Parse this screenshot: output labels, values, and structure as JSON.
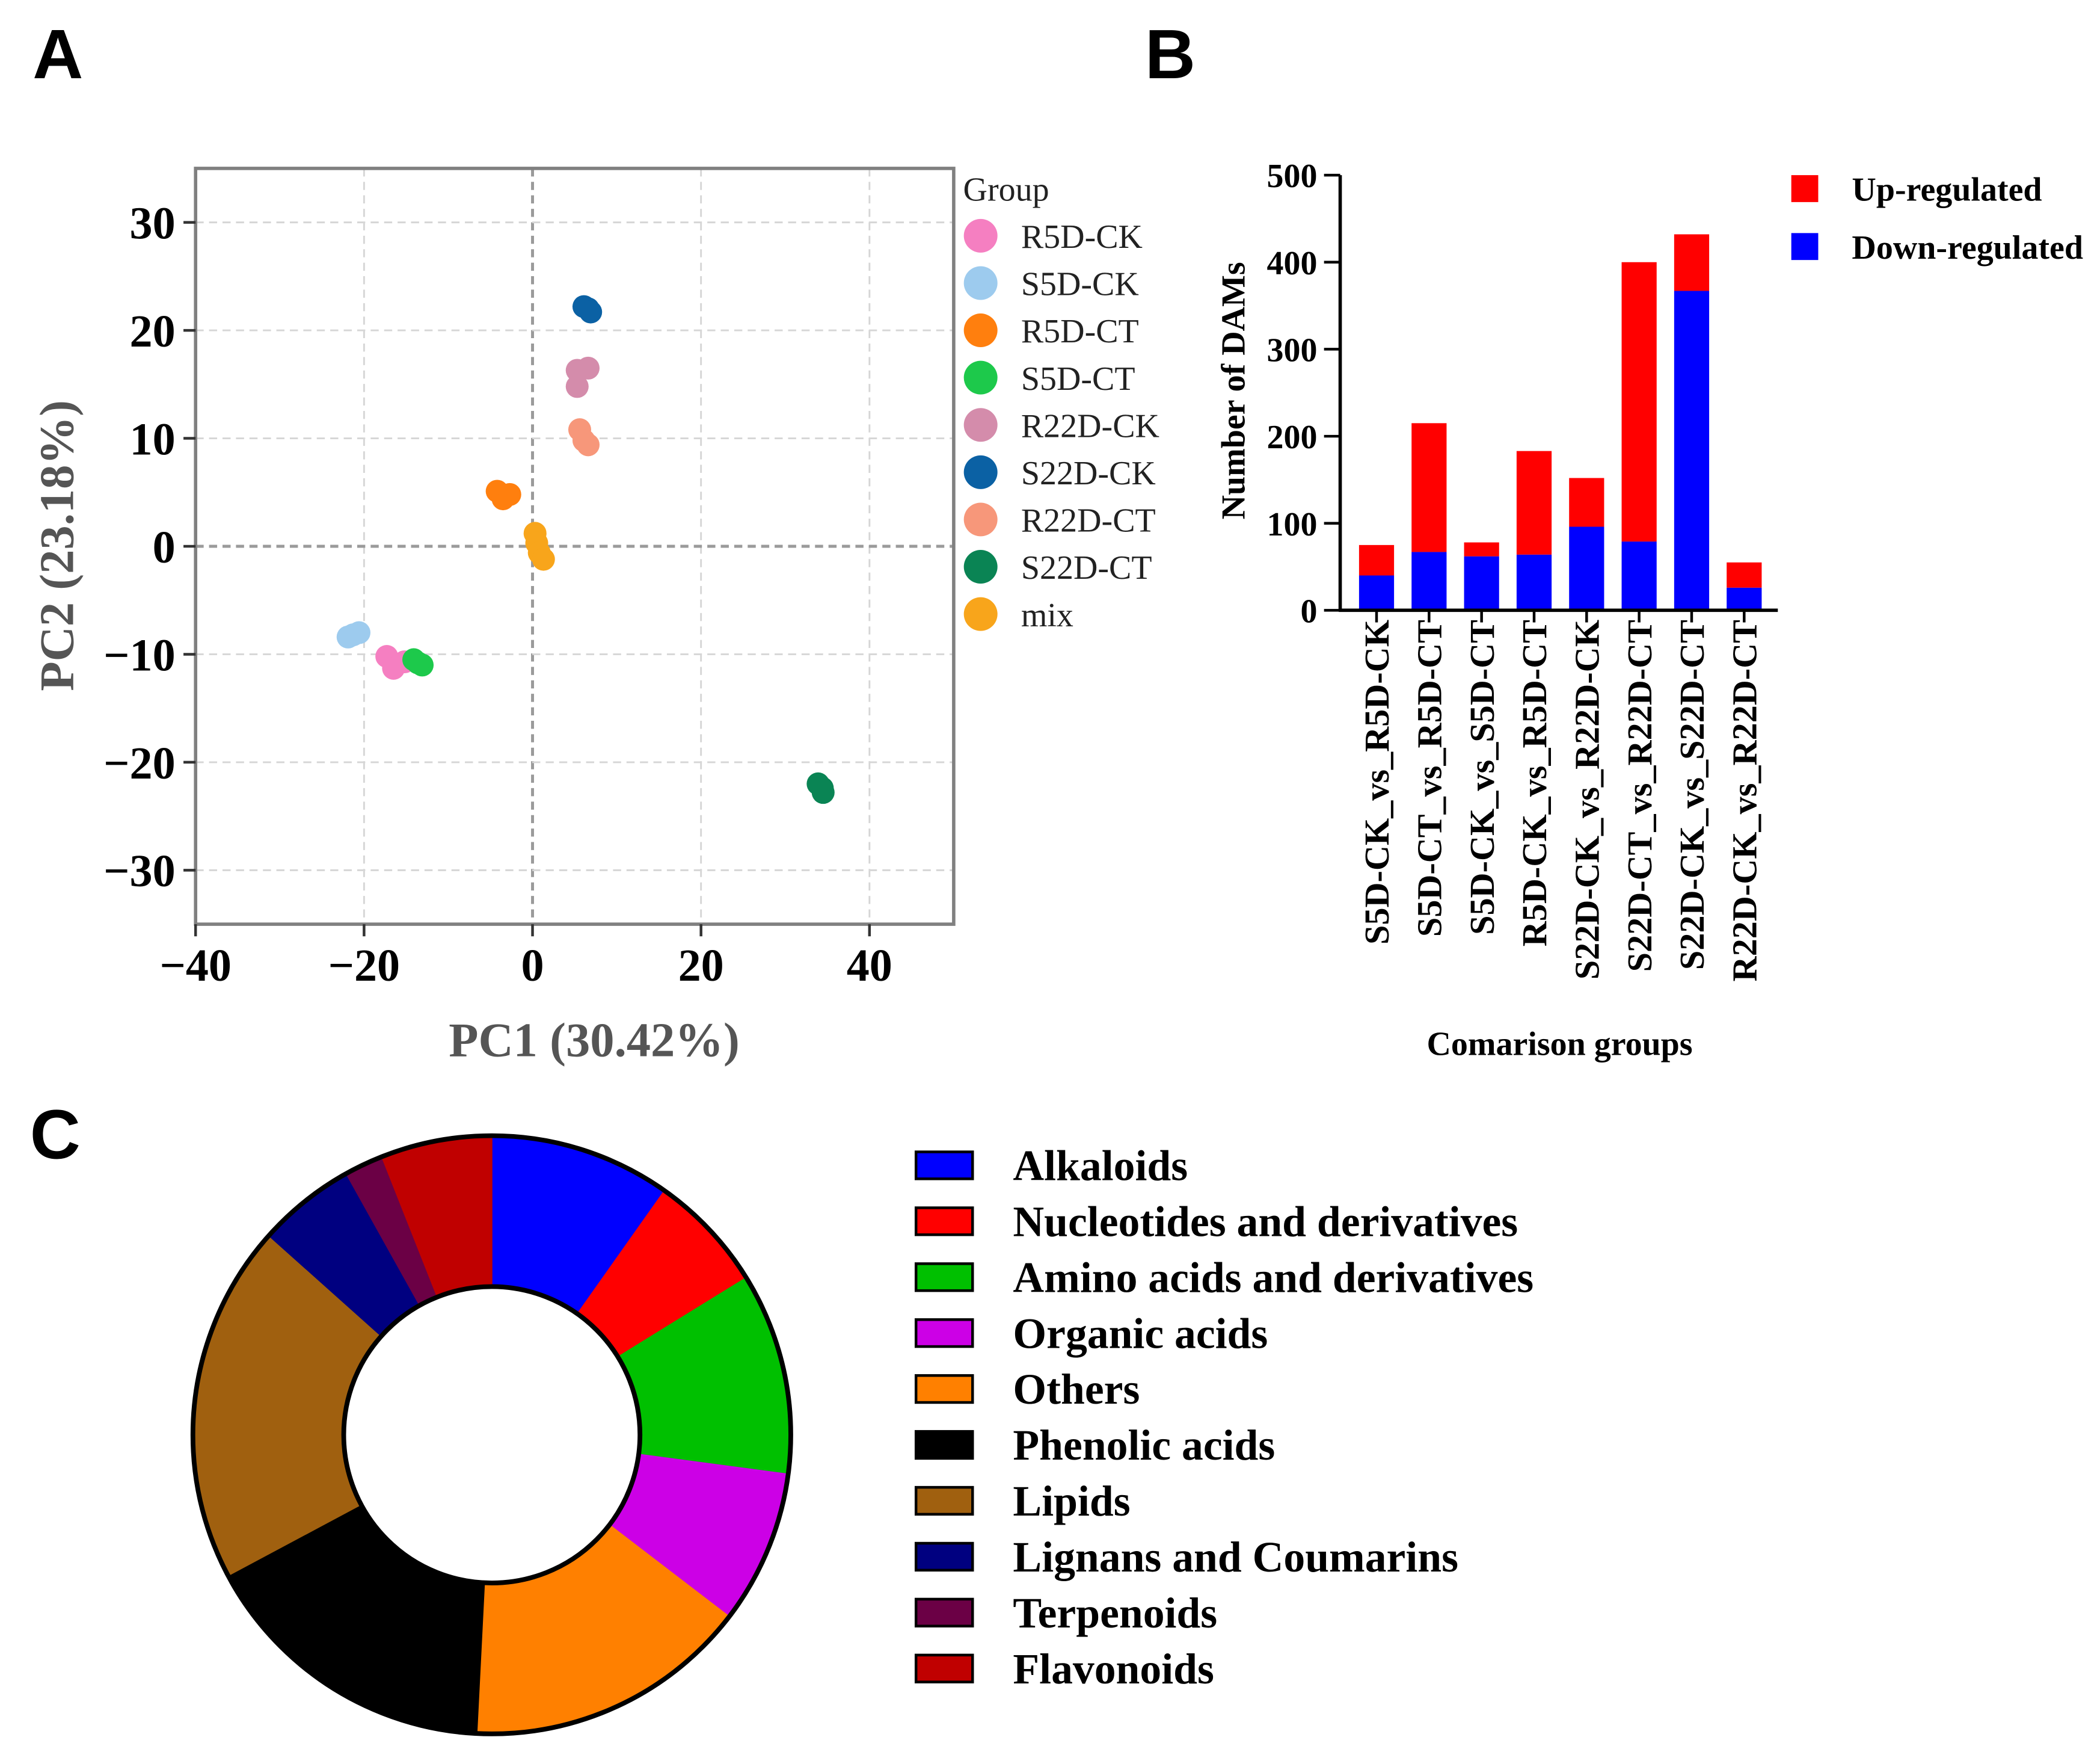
{
  "panel_labels": {
    "a": "A",
    "b": "B",
    "c": "C"
  },
  "chart_data": [
    {
      "type": "scatter",
      "xlabel": "PC1 (30.42%)",
      "ylabel": "PC2 (23.18%)",
      "xlim": [
        -40,
        50
      ],
      "ylim": [
        -35,
        35
      ],
      "grid": true,
      "xticks": [
        -40,
        -20,
        0,
        20,
        40
      ],
      "xtick_labels": [
        "−40",
        "−20",
        "0",
        "20",
        "40"
      ],
      "yticks": [
        30,
        20,
        10,
        0,
        -10,
        -20,
        -30
      ],
      "ytick_labels": [
        "30",
        "20",
        "10",
        "0",
        "−10",
        "−20",
        "−30"
      ],
      "legend_title": "Group",
      "legend_position": "right",
      "series": [
        {
          "name": "R5D-CK",
          "color": "#F57FC1",
          "points": [
            [
              -17.3,
              -10.2
            ],
            [
              -16.5,
              -11.3
            ],
            [
              -15.2,
              -10.7
            ]
          ]
        },
        {
          "name": "S5D-CK",
          "color": "#9DCBEE",
          "points": [
            [
              -21.9,
              -8.4
            ],
            [
              -20.6,
              -8.0
            ],
            [
              -21.3,
              -8.2
            ]
          ]
        },
        {
          "name": "R5D-CT",
          "color": "#FF7F0E",
          "points": [
            [
              -4.2,
              5.1
            ],
            [
              -3.5,
              4.4
            ],
            [
              -2.7,
              4.8
            ]
          ]
        },
        {
          "name": "S5D-CT",
          "color": "#1DC94B",
          "points": [
            [
              -14.1,
              -10.5
            ],
            [
              -13.1,
              -11.0
            ],
            [
              -13.6,
              -10.8
            ]
          ]
        },
        {
          "name": "R22D-CK",
          "color": "#D48CAB",
          "points": [
            [
              5.3,
              16.3
            ],
            [
              6.6,
              16.5
            ],
            [
              5.3,
              14.8
            ]
          ]
        },
        {
          "name": "S22D-CK",
          "color": "#0B61A4",
          "points": [
            [
              6.1,
              22.2
            ],
            [
              6.6,
              22.0
            ],
            [
              6.9,
              21.7
            ]
          ]
        },
        {
          "name": "R22D-CT",
          "color": "#F7977A",
          "points": [
            [
              5.6,
              10.8
            ],
            [
              6.1,
              9.8
            ],
            [
              6.6,
              9.4
            ]
          ]
        },
        {
          "name": "S22D-CT",
          "color": "#0A8454",
          "points": [
            [
              33.9,
              -22.0
            ],
            [
              34.5,
              -22.8
            ],
            [
              34.4,
              -22.4
            ]
          ]
        },
        {
          "name": "mix",
          "color": "#F8A51B",
          "points": [
            [
              0.3,
              1.2
            ],
            [
              0.5,
              0.3
            ],
            [
              0.8,
              -0.6
            ],
            [
              1.3,
              -1.2
            ]
          ]
        }
      ]
    },
    {
      "type": "bar",
      "stacked": true,
      "xlabel": "Comarison groups",
      "ylabel": "Number of DAMs",
      "ylim": [
        0,
        500
      ],
      "yticks": [
        0,
        100,
        200,
        300,
        400,
        500
      ],
      "ytick_labels": [
        "0",
        "100",
        "200",
        "300",
        "400",
        "500"
      ],
      "legend_position": "top-right",
      "categories": [
        "S5D-CK_vs_R5D-CK",
        "S5D-CT_vs_R5D-CT",
        "S5D-CK_vs_S5D-CT",
        "R5D-CK_vs_R5D-CT",
        "S22D-CK_vs_R22D-CK",
        "S22D-CT_vs_R22D-CT",
        "S22D-CK_vs_S22D-CT",
        "R22D-CK_vs_R22D-CT"
      ],
      "series": [
        {
          "name": "Up-regulated",
          "color": "#FF0000",
          "values": [
            35,
            148,
            16,
            119,
            56,
            321,
            65,
            29
          ]
        },
        {
          "name": "Down-regulated",
          "color": "#0000FF",
          "values": [
            40,
            67,
            62,
            64,
            96,
            79,
            367,
            26
          ]
        }
      ]
    },
    {
      "type": "pie",
      "donut": true,
      "legend_position": "right",
      "categories": [
        "Alkaloids",
        "Nucleotides and derivatives",
        "Amino acids and derivatives",
        "Organic acids",
        "Others",
        "Phenolic acids",
        "Lipids",
        "Lignans and Coumarins",
        "Terpenoids",
        "Flavonoids"
      ],
      "values": [
        9.8,
        6.4,
        10.9,
        8.3,
        15.4,
        16.4,
        19.4,
        5.3,
        2.1,
        6.0
      ],
      "colors": [
        "#0000FF",
        "#FF0000",
        "#00C000",
        "#CC00E6",
        "#FF8000",
        "#000000",
        "#A0600F",
        "#000080",
        "#6B0045",
        "#C00000"
      ]
    }
  ]
}
